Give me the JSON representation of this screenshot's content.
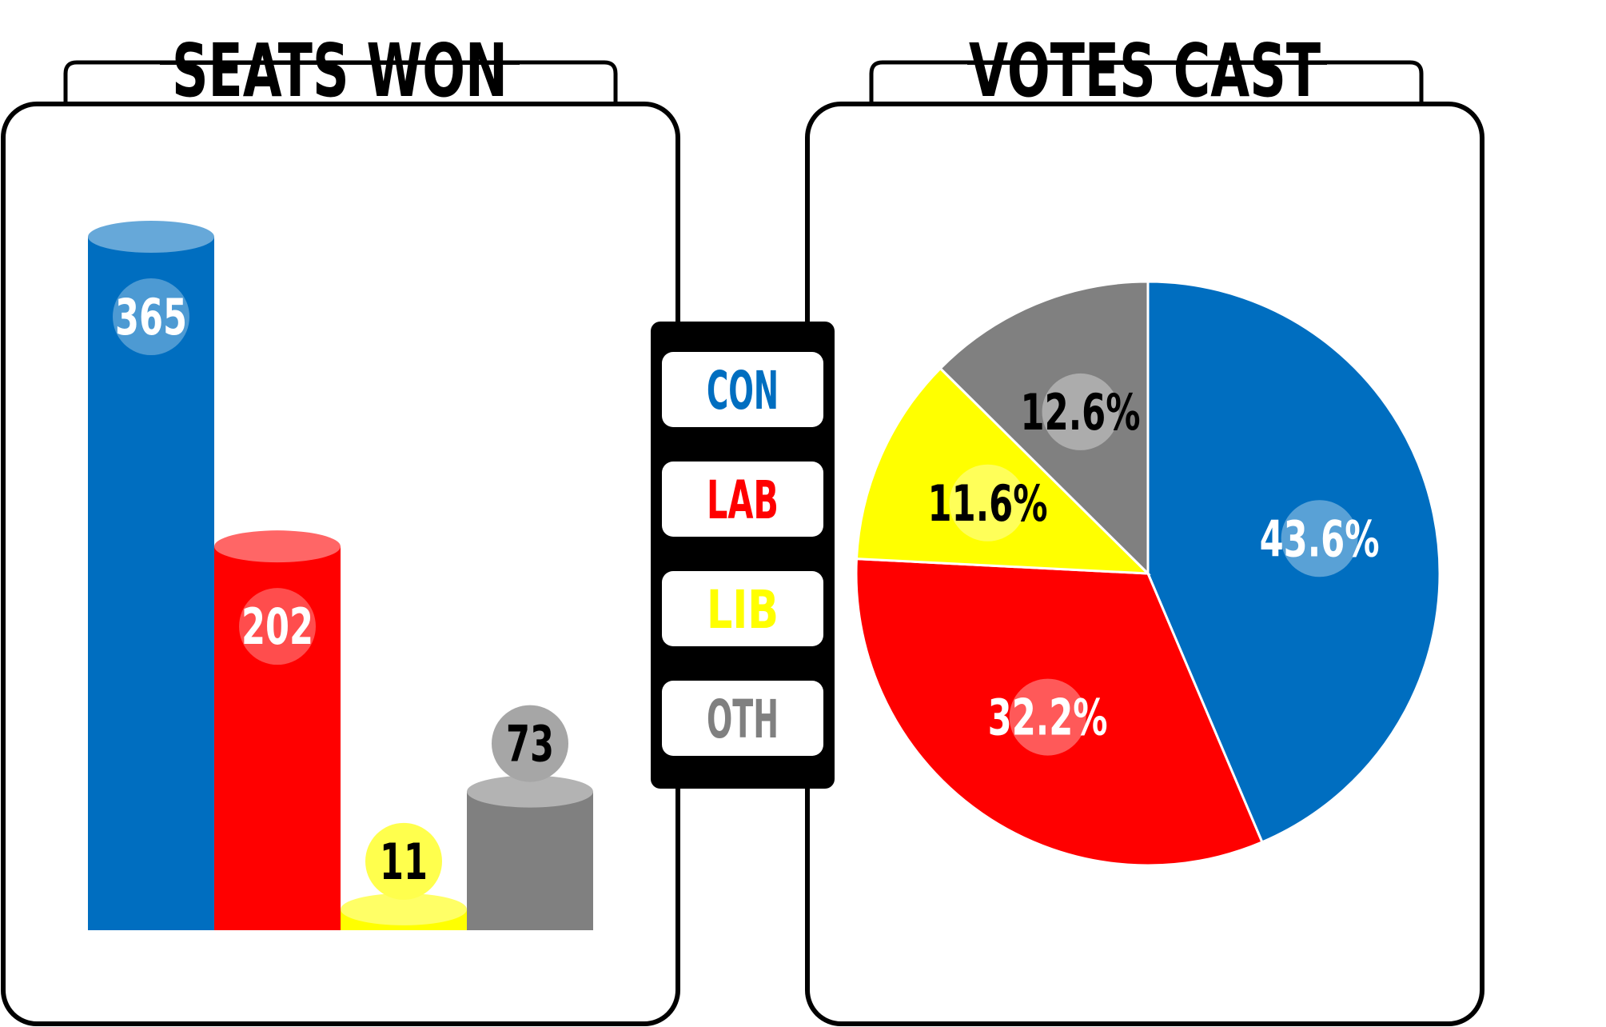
{
  "colors": {
    "con": "#006ec0",
    "lab": "#ff0000",
    "lib": "#ffff00",
    "oth": "#808080",
    "outline": "#000000"
  },
  "legend": {
    "items": [
      {
        "label": "CON",
        "color": "#006ec0"
      },
      {
        "label": "LAB",
        "color": "#ff0000"
      },
      {
        "label": "LIB",
        "color": "#ffff00"
      },
      {
        "label": "OTH",
        "color": "#808080"
      }
    ]
  },
  "chart_data": [
    {
      "type": "bar",
      "title": "SEATS WON",
      "categories": [
        "CON",
        "LAB",
        "LIB",
        "OTH"
      ],
      "values": [
        365,
        202,
        11,
        73
      ],
      "value_labels": [
        "365",
        "202",
        "11",
        "73"
      ],
      "colors": [
        "#006ec0",
        "#ff0000",
        "#ffff00",
        "#808080"
      ],
      "ylim": [
        0,
        400
      ],
      "grid": false,
      "legend": "center-between-charts"
    },
    {
      "type": "pie",
      "title": "VOTES CAST",
      "categories": [
        "CON",
        "LAB",
        "LIB",
        "OTH"
      ],
      "values": [
        43.6,
        32.2,
        11.6,
        12.6
      ],
      "value_labels": [
        "43.6%",
        "32.2%",
        "11.6%",
        "12.6%"
      ],
      "colors": [
        "#006ec0",
        "#ff0000",
        "#ffff00",
        "#808080"
      ],
      "label_colors": [
        "#ffffff",
        "#ffffff",
        "#000000",
        "#000000"
      ],
      "legend": "center-between-charts"
    }
  ]
}
